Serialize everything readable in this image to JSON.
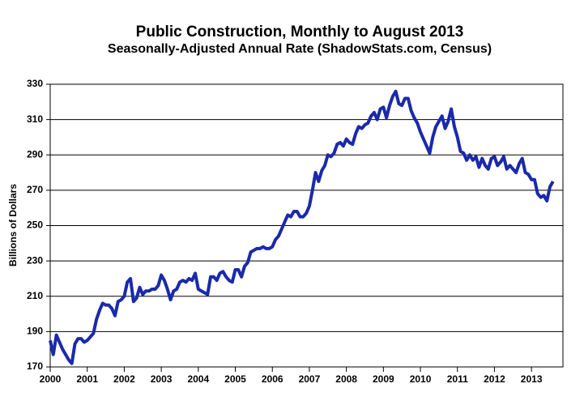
{
  "chart_data": {
    "type": "line",
    "title": "Public Construction, Monthly to August 2013",
    "subtitle": "Seasonally-Adjusted Annual Rate (ShadowStats.com, Census)",
    "y_label": "Billions of Dollars",
    "color": "#1a2aa8",
    "grid": true,
    "xlim": [
      2000,
      2013.85
    ],
    "xticks": [
      2000,
      2001,
      2002,
      2003,
      2004,
      2005,
      2006,
      2007,
      2008,
      2009,
      2010,
      2011,
      2012,
      2013
    ],
    "ylim": [
      170,
      330
    ],
    "yticks": [
      170,
      190,
      210,
      230,
      250,
      270,
      290,
      310,
      330
    ],
    "x": [
      2000,
      2000.083,
      2000.167,
      2000.25,
      2000.333,
      2000.417,
      2000.5,
      2000.583,
      2000.667,
      2000.75,
      2000.833,
      2000.917,
      2001,
      2001.083,
      2001.167,
      2001.25,
      2001.333,
      2001.417,
      2001.5,
      2001.583,
      2001.667,
      2001.75,
      2001.833,
      2001.917,
      2002,
      2002.083,
      2002.167,
      2002.25,
      2002.333,
      2002.417,
      2002.5,
      2002.583,
      2002.667,
      2002.75,
      2002.833,
      2002.917,
      2003,
      2003.083,
      2003.167,
      2003.25,
      2003.333,
      2003.417,
      2003.5,
      2003.583,
      2003.667,
      2003.75,
      2003.833,
      2003.917,
      2004,
      2004.083,
      2004.167,
      2004.25,
      2004.333,
      2004.417,
      2004.5,
      2004.583,
      2004.667,
      2004.75,
      2004.833,
      2004.917,
      2005,
      2005.083,
      2005.167,
      2005.25,
      2005.333,
      2005.417,
      2005.5,
      2005.583,
      2005.667,
      2005.75,
      2005.833,
      2005.917,
      2006,
      2006.083,
      2006.167,
      2006.25,
      2006.333,
      2006.417,
      2006.5,
      2006.583,
      2006.667,
      2006.75,
      2006.833,
      2006.917,
      2007,
      2007.083,
      2007.167,
      2007.25,
      2007.333,
      2007.417,
      2007.5,
      2007.583,
      2007.667,
      2007.75,
      2007.833,
      2007.917,
      2008,
      2008.083,
      2008.167,
      2008.25,
      2008.333,
      2008.417,
      2008.5,
      2008.583,
      2008.667,
      2008.75,
      2008.833,
      2008.917,
      2009,
      2009.083,
      2009.167,
      2009.25,
      2009.333,
      2009.417,
      2009.5,
      2009.583,
      2009.667,
      2009.75,
      2009.833,
      2009.917,
      2010,
      2010.083,
      2010.167,
      2010.25,
      2010.333,
      2010.417,
      2010.5,
      2010.583,
      2010.667,
      2010.75,
      2010.833,
      2010.917,
      2011,
      2011.083,
      2011.167,
      2011.25,
      2011.333,
      2011.417,
      2011.5,
      2011.583,
      2011.667,
      2011.75,
      2011.833,
      2011.917,
      2012,
      2012.083,
      2012.167,
      2012.25,
      2012.333,
      2012.417,
      2012.5,
      2012.583,
      2012.667,
      2012.75,
      2012.833,
      2012.917,
      2013,
      2013.083,
      2013.167,
      2013.25,
      2013.333,
      2013.417,
      2013.5,
      2013.583
    ],
    "values": [
      185,
      177,
      188,
      184,
      180,
      177,
      174,
      172,
      183,
      186,
      186,
      184,
      185,
      187,
      189,
      197,
      202,
      206,
      205,
      205,
      203,
      199,
      207,
      208,
      210,
      218,
      220,
      207,
      209,
      215,
      211,
      213,
      213,
      214,
      214,
      216,
      222,
      219,
      214,
      208,
      213,
      214,
      218,
      219,
      218,
      220,
      219,
      223,
      214,
      213,
      212,
      211,
      221,
      221,
      219,
      223,
      224,
      221,
      219,
      218,
      225,
      225,
      221,
      227,
      229,
      235,
      236,
      237,
      237,
      238,
      237,
      237,
      238,
      242,
      244,
      248,
      252,
      256,
      255,
      258,
      258,
      255,
      255,
      257,
      261,
      270,
      280,
      275,
      281,
      284,
      290,
      289,
      291,
      296,
      297,
      295,
      299,
      297,
      296,
      302,
      306,
      305,
      307,
      308,
      312,
      314,
      310,
      316,
      317,
      311,
      318,
      323,
      326,
      319,
      318,
      322,
      322,
      315,
      311,
      308,
      303,
      299,
      295,
      291,
      300,
      306,
      309,
      312,
      305,
      309,
      316,
      306,
      300,
      292,
      291,
      287,
      290,
      287,
      289,
      283,
      288,
      284,
      282,
      288,
      289,
      284,
      286,
      289,
      282,
      284,
      282,
      280,
      285,
      288,
      280,
      279,
      276,
      276,
      268,
      266,
      267,
      264,
      272,
      275
    ]
  }
}
